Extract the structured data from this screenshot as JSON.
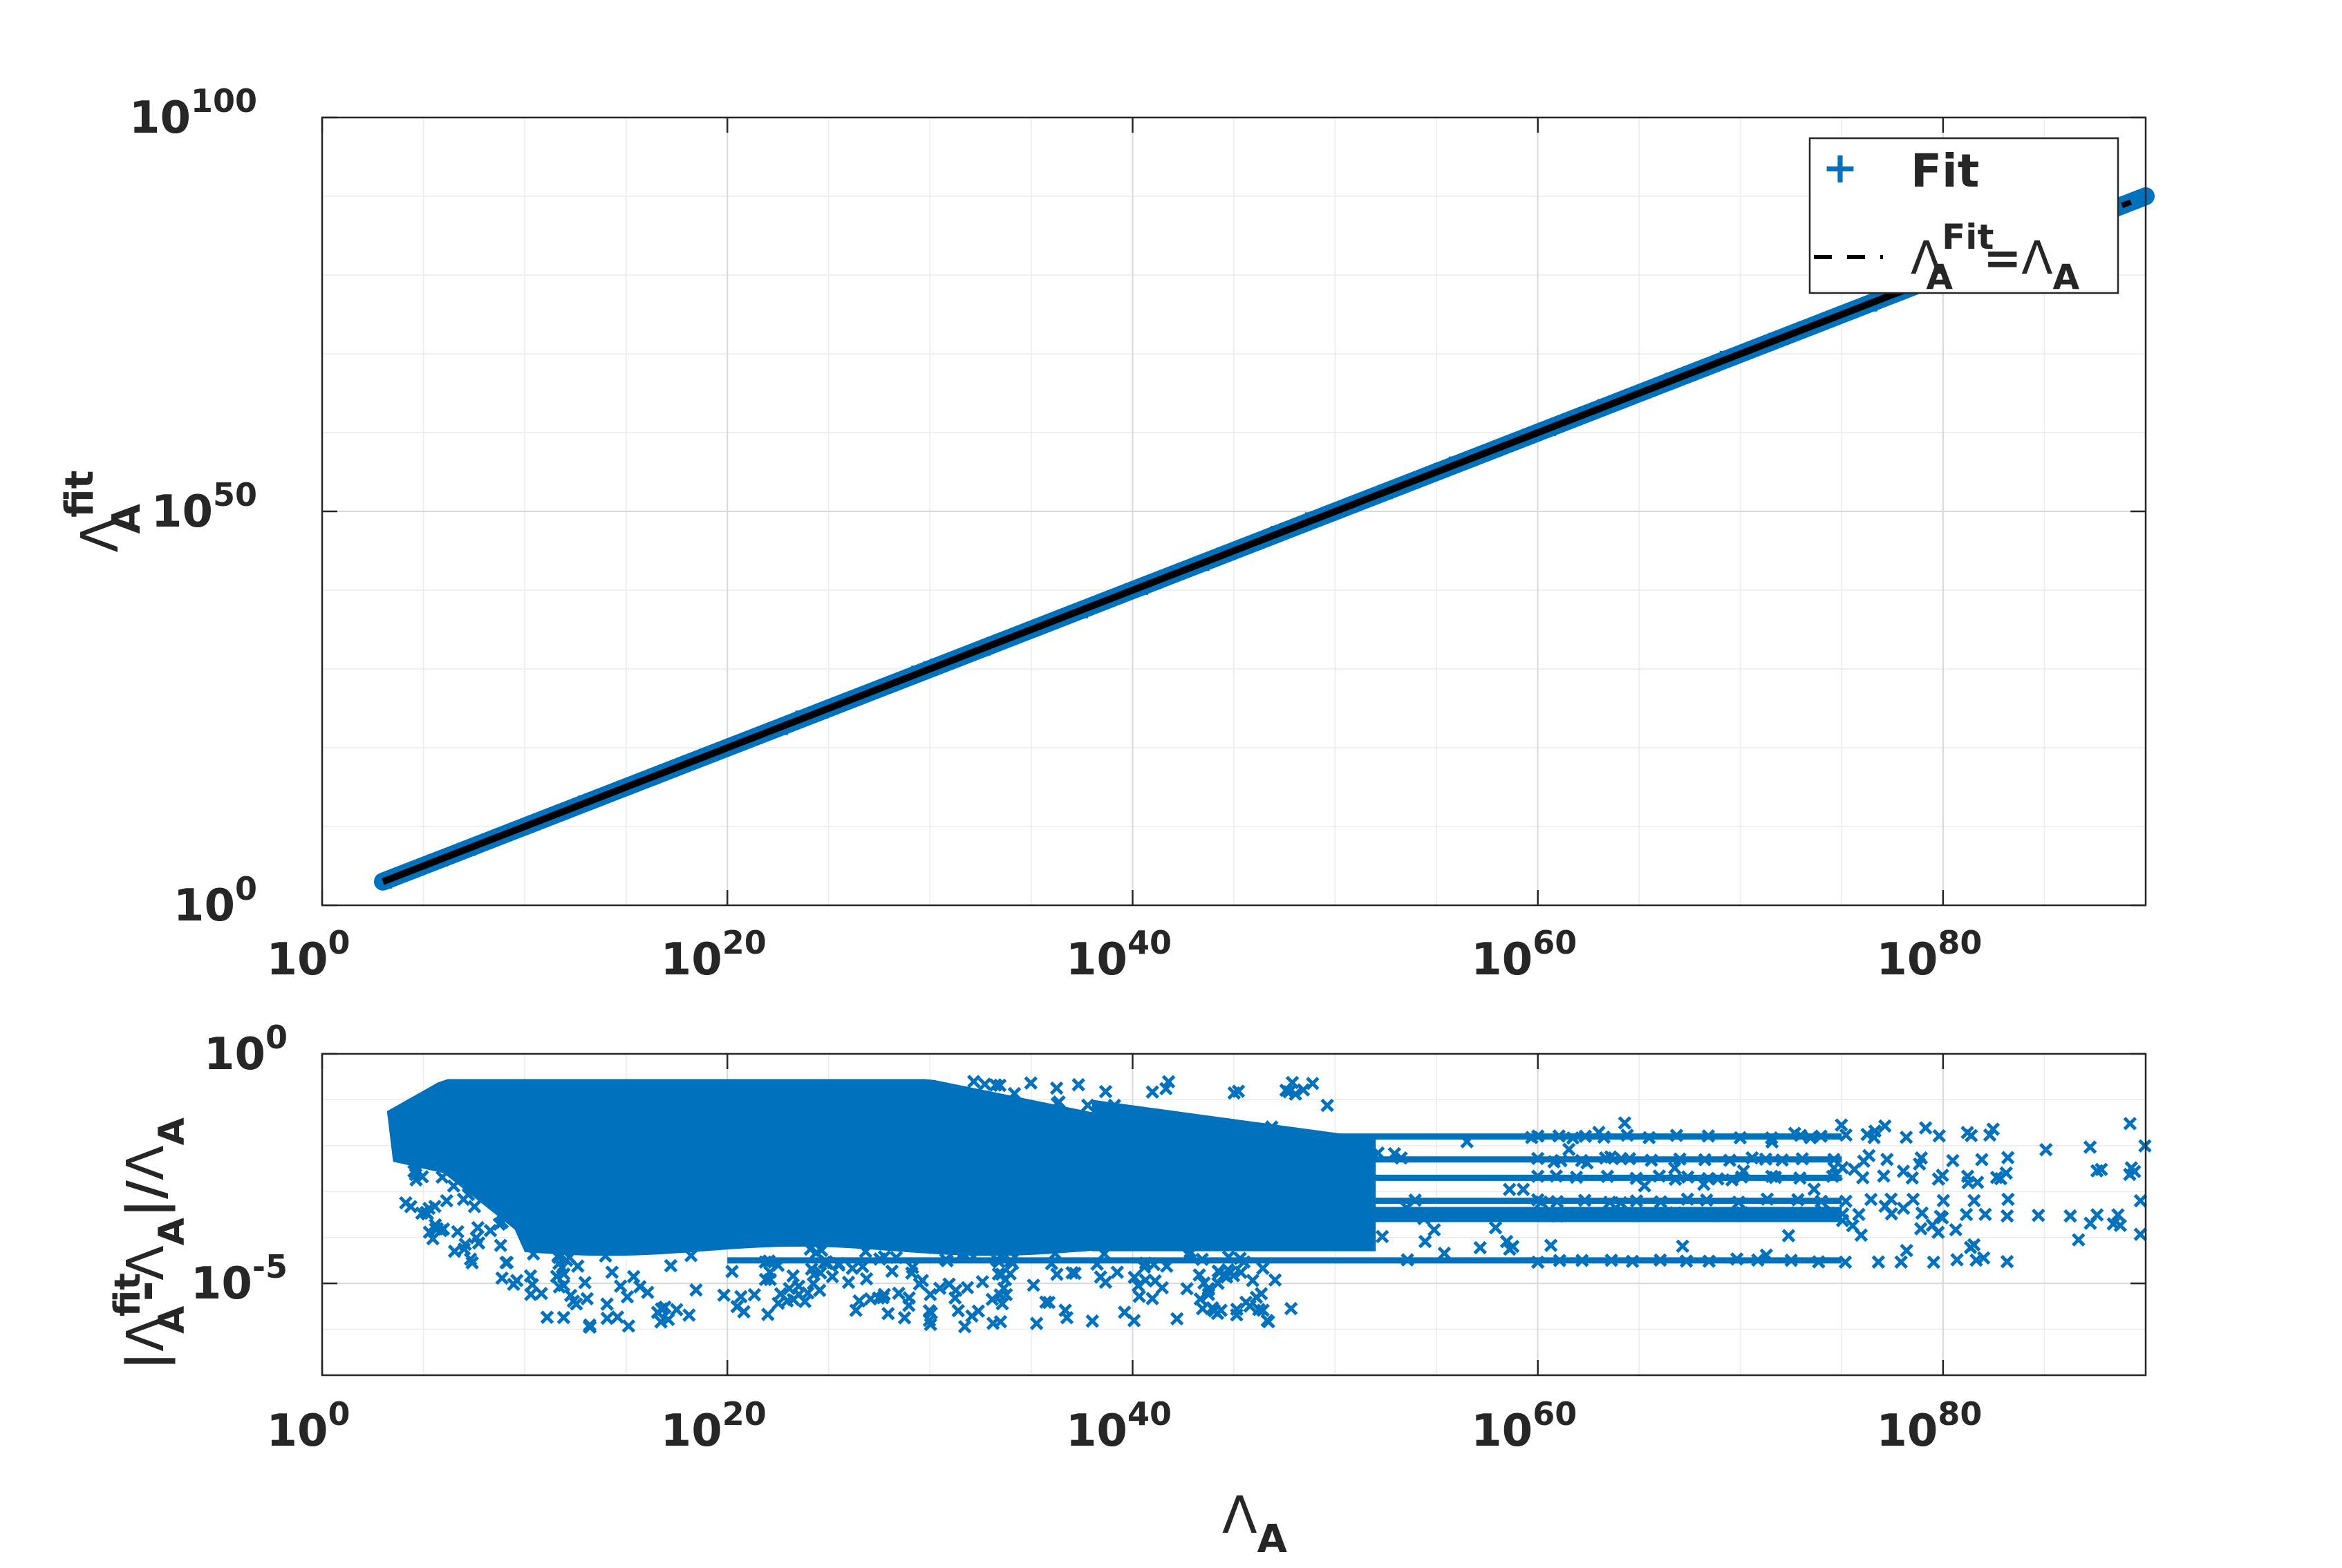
{
  "colors": {
    "marker": "#0072bd",
    "identity_line": "#000000",
    "axis": "#262626",
    "grid": "#d9d9d9"
  },
  "chart_data": [
    {
      "type": "scatter",
      "panel": "top",
      "xscale": "log",
      "yscale": "log",
      "xlim_exp": [
        0,
        90
      ],
      "ylim_exp": [
        0,
        100
      ],
      "xticks": [
        {
          "base": "10",
          "exp": "0"
        },
        {
          "base": "10",
          "exp": "20"
        },
        {
          "base": "10",
          "exp": "40"
        },
        {
          "base": "10",
          "exp": "60"
        },
        {
          "base": "10",
          "exp": "80"
        }
      ],
      "yticks": [
        {
          "base": "10",
          "exp": "0"
        },
        {
          "base": "10",
          "exp": "50"
        },
        {
          "base": "10",
          "exp": "100"
        }
      ],
      "ylabel": {
        "main": "Λ",
        "sup": "fit",
        "sub": "A"
      },
      "grid": true,
      "legend": {
        "position": "top-right",
        "entries": [
          {
            "marker": "plus",
            "label": "Fit"
          },
          {
            "marker": "dashed-line",
            "label_main": "Λ",
            "label_sup": "Fit",
            "label_sub": "A",
            "label_eq": "=",
            "label_main2": "Λ",
            "label_sub2": "A"
          }
        ]
      },
      "series": [
        {
          "name": "Fit",
          "marker": "plus",
          "x_exp_range": [
            3,
            90
          ],
          "y_equals_x": true
        },
        {
          "name": "identity",
          "style": "solid-black",
          "x_exp": [
            3,
            88
          ],
          "y_exp": [
            3,
            88
          ]
        }
      ]
    },
    {
      "type": "scatter",
      "panel": "bottom",
      "xscale": "log",
      "yscale": "log",
      "xlim_exp": [
        0,
        90
      ],
      "ylim_exp": [
        -7,
        0
      ],
      "xticks": [
        {
          "base": "10",
          "exp": "0"
        },
        {
          "base": "10",
          "exp": "20"
        },
        {
          "base": "10",
          "exp": "40"
        },
        {
          "base": "10",
          "exp": "60"
        },
        {
          "base": "10",
          "exp": "80"
        }
      ],
      "yticks": [
        {
          "base": "10",
          "exp": "-5"
        },
        {
          "base": "10",
          "exp": "0"
        }
      ],
      "xlabel": {
        "main": "Λ",
        "sub": "A"
      },
      "ylabel": {
        "bar1": "|",
        "main": "Λ",
        "sup": "fit",
        "sub": "A",
        "minus": "-",
        "main2": "Λ",
        "sub2": "A",
        "bar2": "|",
        "slash": "/",
        "main3": "Λ",
        "sub3": "A"
      },
      "grid": true,
      "series": [
        {
          "name": "relative error",
          "marker": "x",
          "dense_band_exp": {
            "x": [
              3,
              40
            ],
            "y_top": -0.5,
            "y_bottom": -4.3
          },
          "stripes_y_exp": [
            -1.8,
            -2.3,
            -2.7,
            -3.2,
            -3.5,
            -4.5
          ],
          "stripes_x_exp_end": [
            84,
            84,
            84,
            84,
            90,
            84
          ]
        }
      ]
    }
  ]
}
